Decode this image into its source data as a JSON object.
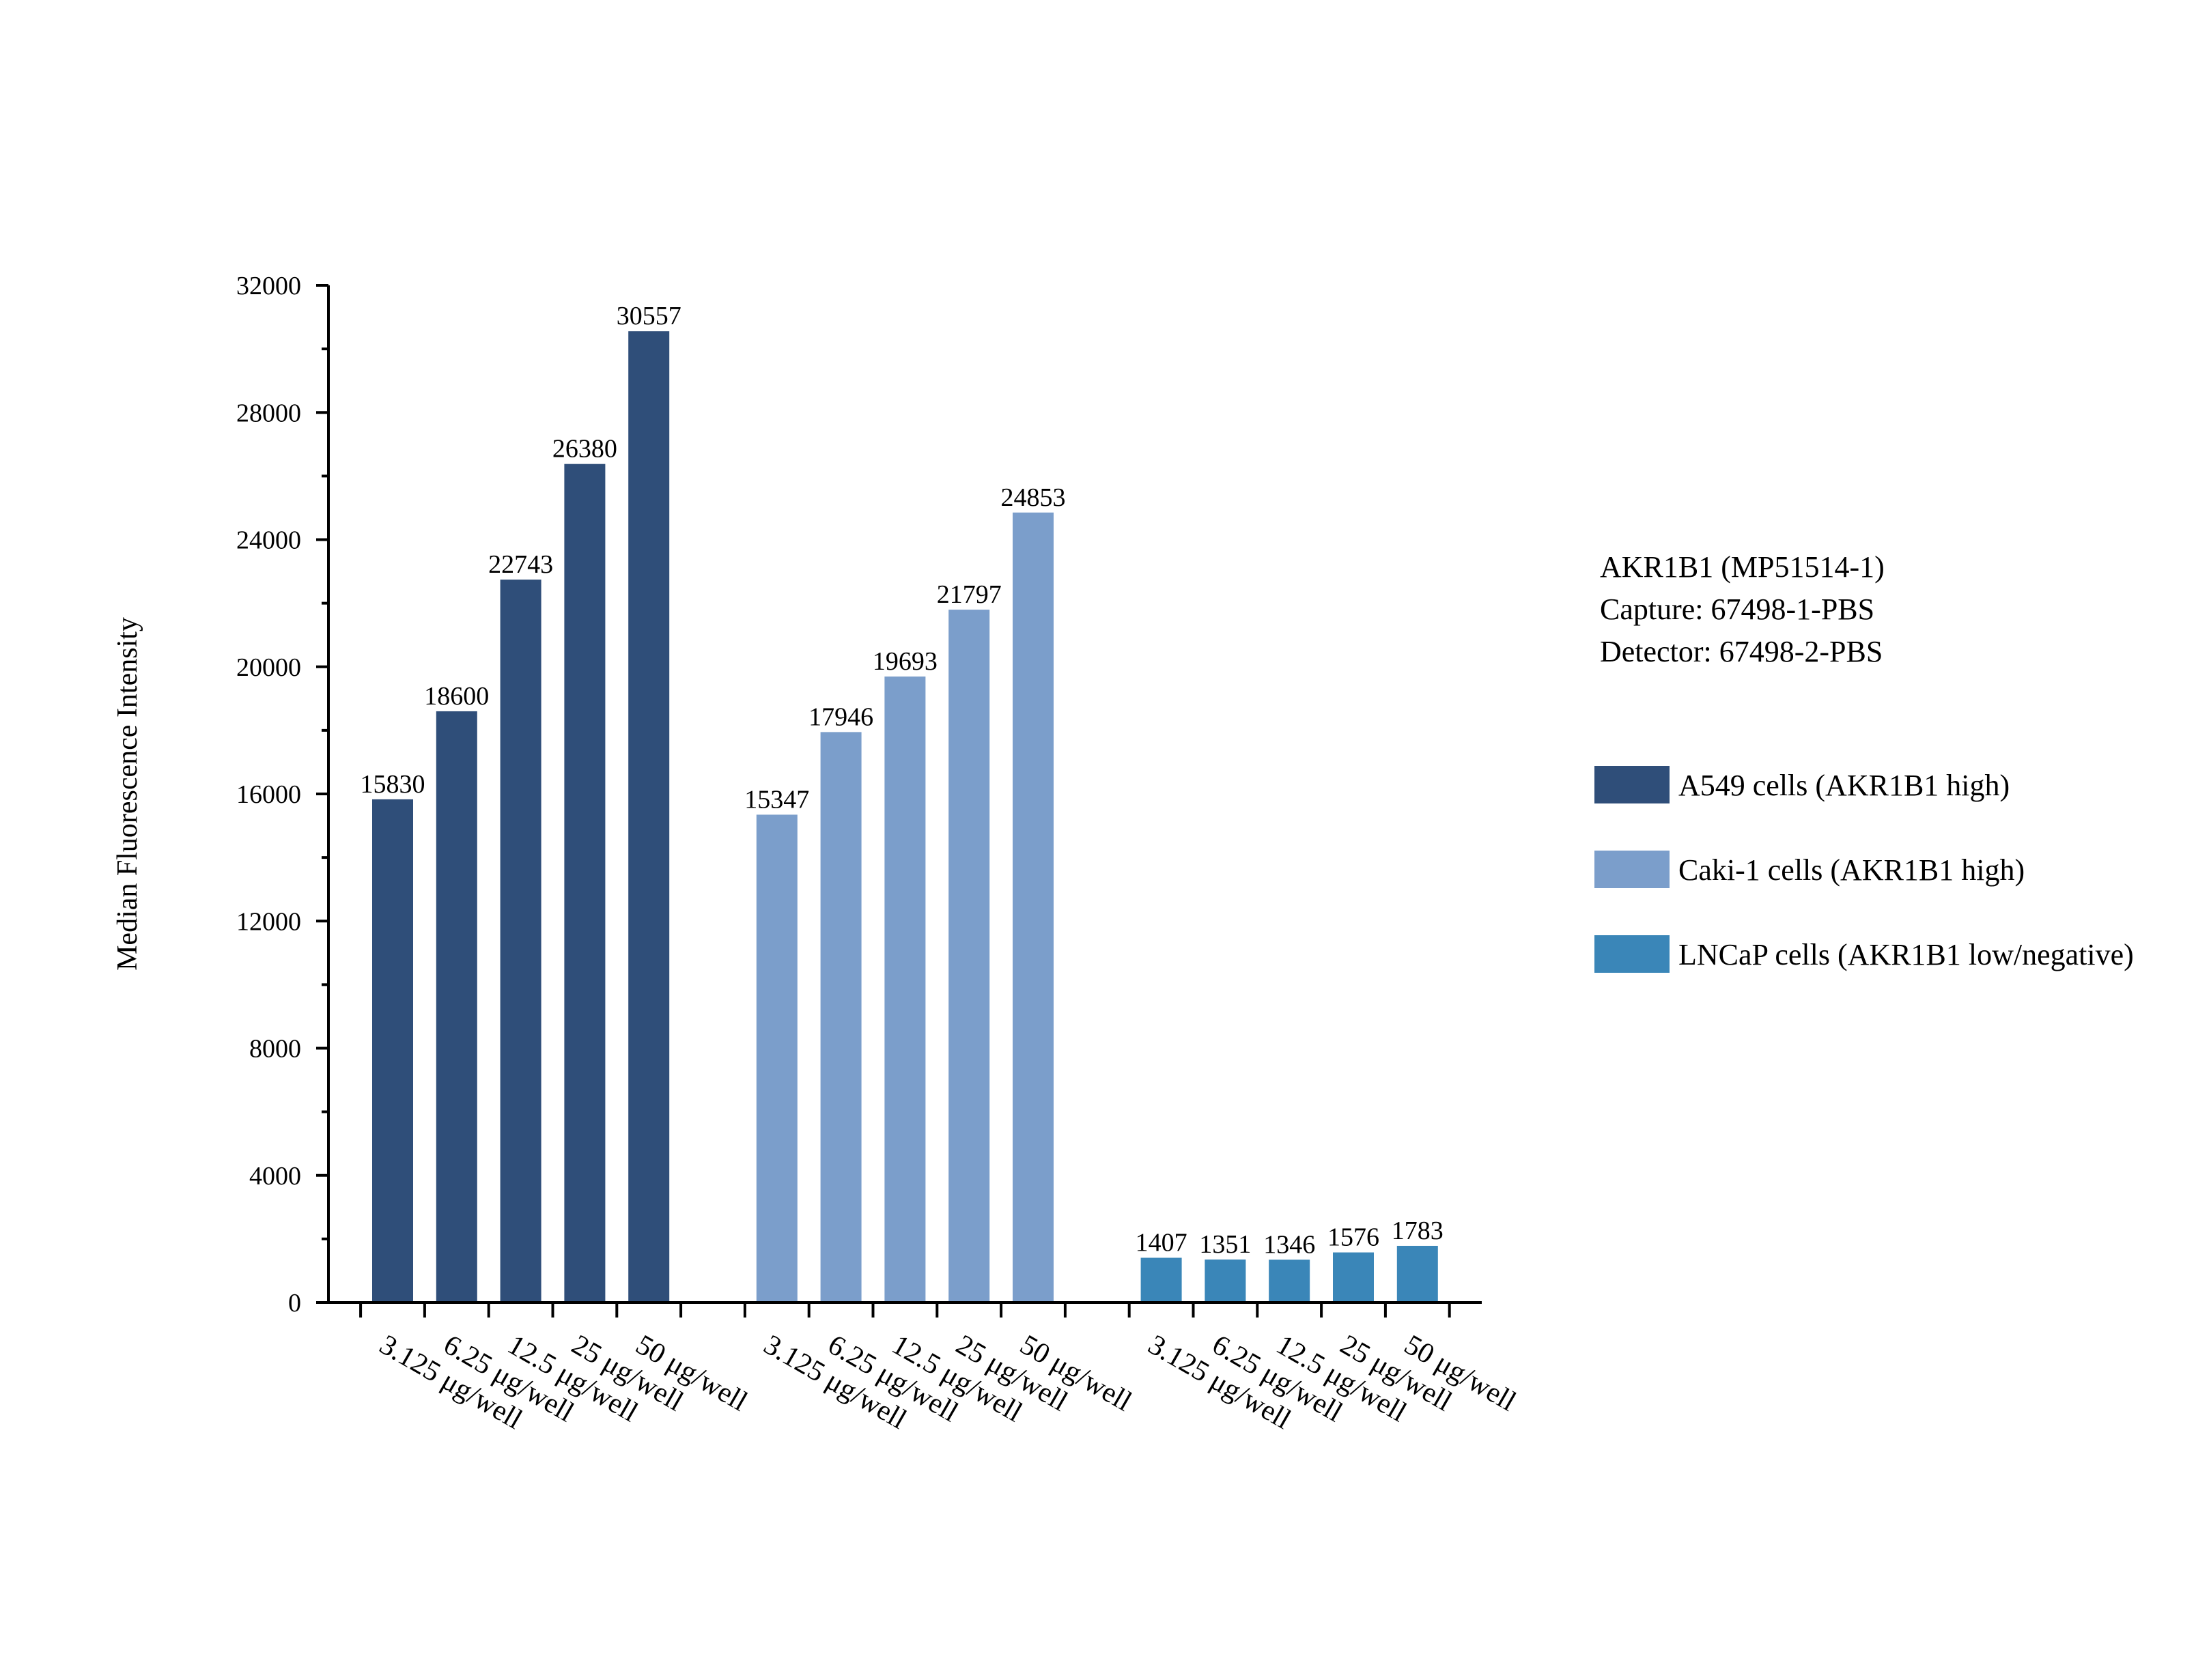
{
  "chart_data": {
    "type": "bar",
    "title": "",
    "xlabel": "",
    "ylabel": "Median Fluorescence Intensity",
    "ylim": [
      0,
      32000
    ],
    "yticks": [
      0,
      4000,
      8000,
      12000,
      16000,
      20000,
      24000,
      28000,
      32000
    ],
    "grid": false,
    "legend_position": "right",
    "categories": [
      "3.125 μg/well",
      "6.25 μg/well",
      "12.5 μg/well",
      "25 μg/well",
      "50 μg/well"
    ],
    "series": [
      {
        "name": "A549 cells (AKR1B1 high)",
        "color": "#2f4e79",
        "values": [
          15830,
          18600,
          22743,
          26380,
          30557
        ]
      },
      {
        "name": "Caki-1 cells (AKR1B1 high)",
        "color": "#7b9ecb",
        "values": [
          15347,
          17946,
          19693,
          21797,
          24853
        ]
      },
      {
        "name": "LNCaP cells (AKR1B1 low/negative)",
        "color": "#3a86b8",
        "values": [
          1407,
          1351,
          1346,
          1576,
          1783
        ]
      }
    ],
    "annotations": [
      "AKR1B1 (MP51514-1)",
      "Capture: 67498-1-PBS",
      "Detector: 67498-2-PBS"
    ]
  }
}
